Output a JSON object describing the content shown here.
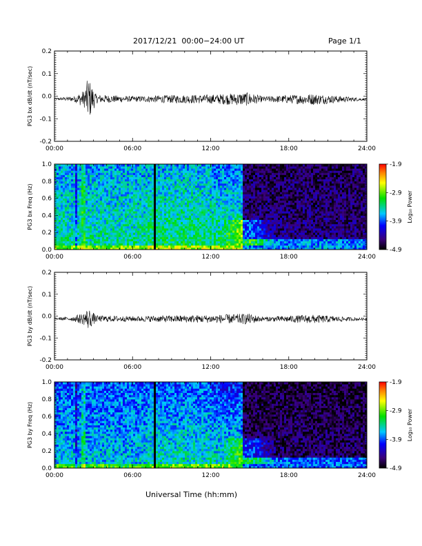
{
  "header": {
    "title": "2017/12/21  00:00−24:00 UT",
    "page": "Page 1/1",
    "xlabel": "Universal Time (hh:mm)"
  },
  "chart_data": [
    {
      "type": "line",
      "title": "",
      "ylabel": "PG3 bx dB/dt (nT/sec)",
      "xlabel": "",
      "xlim": [
        0,
        24
      ],
      "ylim": [
        -0.2,
        0.2
      ],
      "x_ticks": [
        "00:00",
        "06:00",
        "12:00",
        "18:00",
        "24:00"
      ],
      "y_ticks": [
        "0.2",
        "0.1",
        "0.0",
        "-0.1",
        "-0.2"
      ],
      "grid": false,
      "series": [
        {
          "values": [
            {
              "t": 0.0,
              "amp": 0.004
            },
            {
              "t": 1.5,
              "amp": 0.012
            },
            {
              "t": 2.3,
              "amp": 0.04
            },
            {
              "t": 2.6,
              "amp": 0.1
            },
            {
              "t": 3.2,
              "amp": 0.02
            },
            {
              "t": 6.0,
              "amp": 0.012
            },
            {
              "t": 9.0,
              "amp": 0.018
            },
            {
              "t": 12.0,
              "amp": 0.02
            },
            {
              "t": 14.9,
              "amp": 0.03
            },
            {
              "t": 16.0,
              "amp": 0.012
            },
            {
              "t": 19.9,
              "amp": 0.025
            },
            {
              "t": 24.0,
              "amp": 0.004
            }
          ]
        }
      ]
    },
    {
      "type": "heatmap",
      "title": "",
      "ylabel": "PG3 bx Freq (Hz)",
      "xlabel": "",
      "xlim": [
        0,
        24
      ],
      "ylim": [
        0,
        1
      ],
      "x_ticks": [
        "00:00",
        "06:00",
        "12:00",
        "18:00",
        "24:00"
      ],
      "y_ticks": [
        "1.0",
        "0.8",
        "0.6",
        "0.4",
        "0.2",
        "0.0"
      ],
      "colorbar": {
        "label": "Log₁₀ Power",
        "ticks": [
          "-1.9",
          "-2.9",
          "-3.9",
          "-4.9"
        ],
        "range": [
          -4.9,
          -1.9
        ]
      },
      "features": [
        {
          "region": "00:00-14:30",
          "level": -3.4
        },
        {
          "region": "14:30-24:00",
          "level": -4.5
        },
        {
          "region": "dark vertical line near 07:45",
          "level": -4.9
        },
        {
          "region": "emission 0.05-0.4 Hz around 13:00-17:00",
          "level": -2.9
        }
      ]
    },
    {
      "type": "line",
      "title": "",
      "ylabel": "PG3 by dB/dt (nT/sec)",
      "xlabel": "",
      "xlim": [
        0,
        24
      ],
      "ylim": [
        -0.2,
        0.2
      ],
      "x_ticks": [
        "00:00",
        "06:00",
        "12:00",
        "18:00",
        "24:00"
      ],
      "y_ticks": [
        "0.2",
        "0.1",
        "0.0",
        "-0.1",
        "-0.2"
      ],
      "grid": false,
      "series": [
        {
          "values": [
            {
              "t": 0.0,
              "amp": 0.004
            },
            {
              "t": 1.5,
              "amp": 0.012
            },
            {
              "t": 2.3,
              "amp": 0.03
            },
            {
              "t": 2.6,
              "amp": 0.05
            },
            {
              "t": 3.2,
              "amp": 0.015
            },
            {
              "t": 6.0,
              "amp": 0.012
            },
            {
              "t": 9.0,
              "amp": 0.016
            },
            {
              "t": 12.0,
              "amp": 0.018
            },
            {
              "t": 14.9,
              "amp": 0.025
            },
            {
              "t": 16.0,
              "amp": 0.01
            },
            {
              "t": 19.9,
              "amp": 0.02
            },
            {
              "t": 24.0,
              "amp": 0.004
            }
          ]
        }
      ]
    },
    {
      "type": "heatmap",
      "title": "",
      "ylabel": "PG3 by Freq (Hz)",
      "xlabel": "",
      "xlim": [
        0,
        24
      ],
      "ylim": [
        0,
        1
      ],
      "x_ticks": [
        "00:00",
        "06:00",
        "12:00",
        "18:00",
        "24:00"
      ],
      "y_ticks": [
        "1.0",
        "0.8",
        "0.6",
        "0.4",
        "0.2",
        "0.0"
      ],
      "colorbar": {
        "label": "Log₁₀ Power",
        "ticks": [
          "-1.9",
          "-2.9",
          "-3.9",
          "-4.9"
        ],
        "range": [
          -4.9,
          -1.9
        ]
      },
      "features": [
        {
          "region": "00:00-14:30",
          "level": -3.6
        },
        {
          "region": "14:30-24:00",
          "level": -4.6
        },
        {
          "region": "dark vertical line near 07:45",
          "level": -4.9
        },
        {
          "region": "emission 0.05-0.4 Hz around 13:00-17:00",
          "level": -2.9
        }
      ]
    }
  ]
}
